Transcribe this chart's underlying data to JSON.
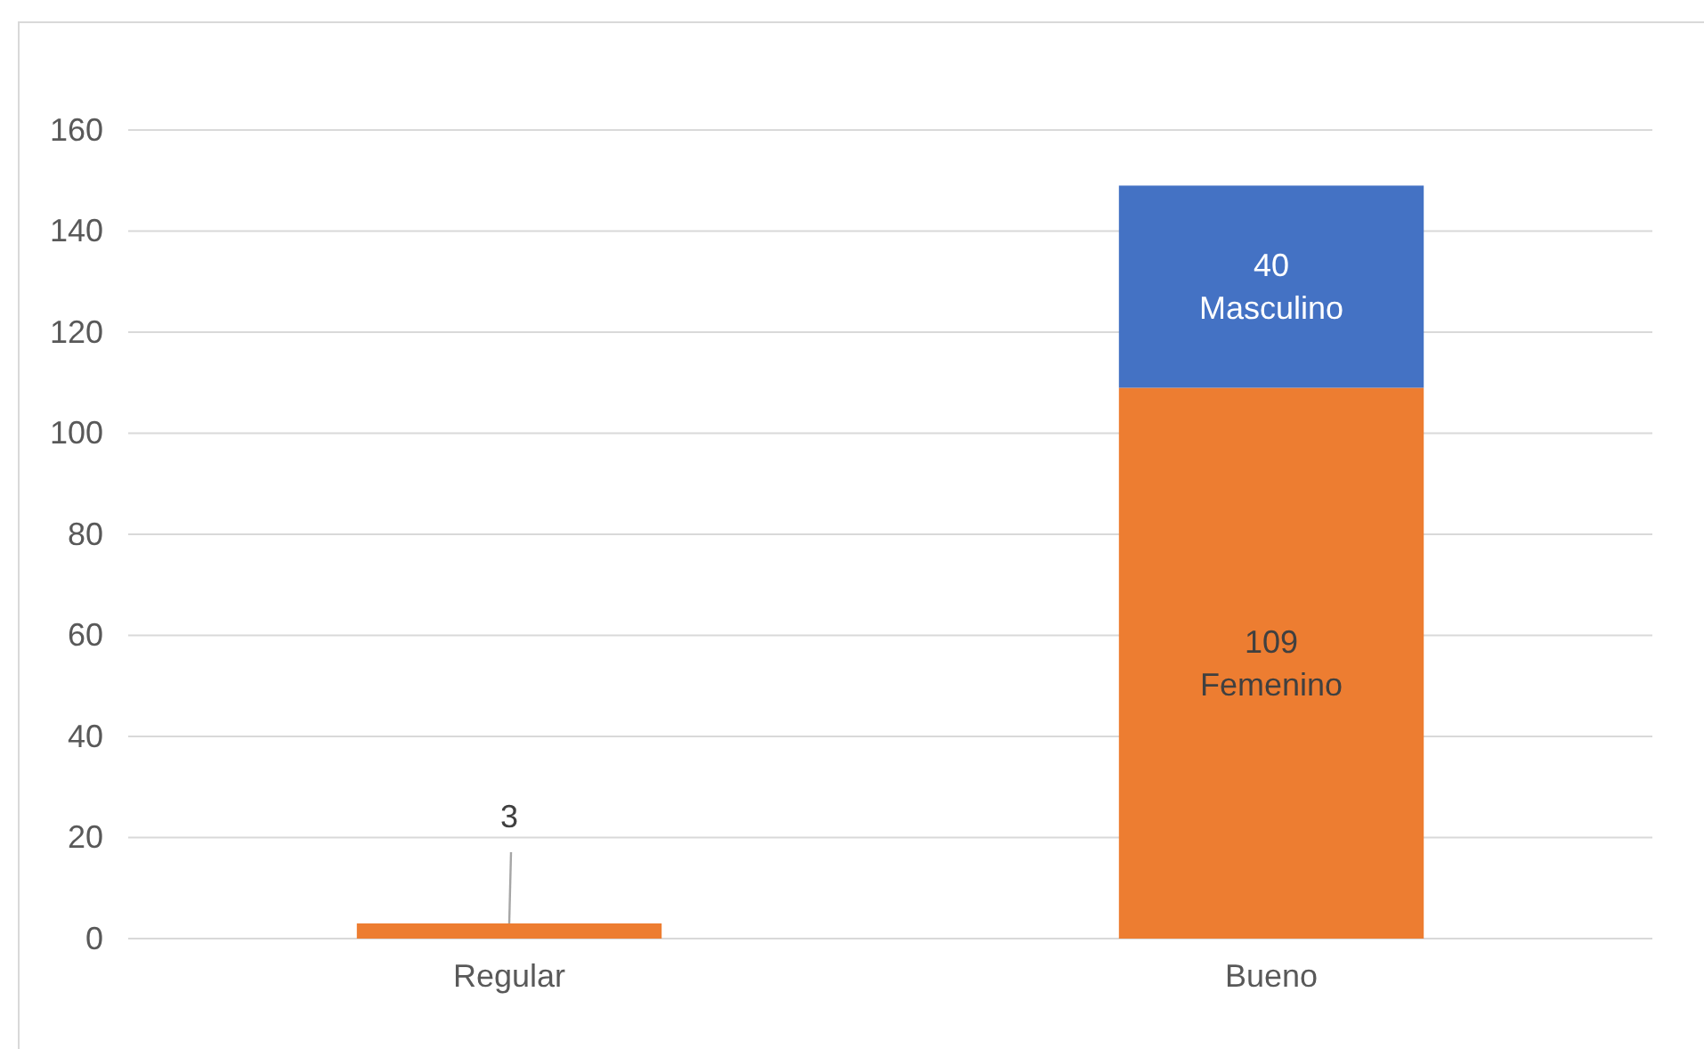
{
  "chart_data": {
    "type": "bar",
    "stacked": true,
    "categories": [
      "Regular",
      "Bueno"
    ],
    "series": [
      {
        "color": "#ed7d31",
        "values": [
          3,
          109
        ],
        "value_labels": [
          "3",
          "109\nFemenino"
        ]
      },
      {
        "color": "#4472c4",
        "values": [
          0,
          40
        ],
        "value_labels": [
          null,
          "40\nMasculino"
        ]
      }
    ],
    "ylim": [
      0,
      160
    ],
    "yticks": [
      0,
      20,
      40,
      60,
      80,
      100,
      120,
      140,
      160
    ],
    "grid": "y"
  }
}
